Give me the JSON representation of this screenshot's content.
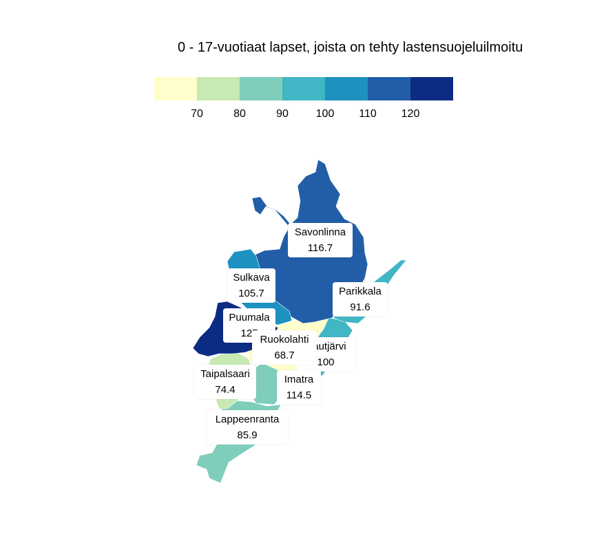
{
  "title": "0 - 17-vuotiaat lapset, joista on tehty lastensuojeluilmoitu",
  "legend": {
    "colors": [
      "#ffffcc",
      "#c7e9b4",
      "#7fcdbb",
      "#41b6c4",
      "#1d91c0",
      "#225ea8",
      "#0c2c84"
    ],
    "ticks": [
      "70",
      "80",
      "90",
      "100",
      "110",
      "120"
    ]
  },
  "regions": [
    {
      "name": "Savonlinna",
      "value": "116.7",
      "color": "#225ea8"
    },
    {
      "name": "Sulkava",
      "value": "105.7",
      "color": "#1d91c0"
    },
    {
      "name": "Parikkala",
      "value": "91.6",
      "color": "#41b6c4"
    },
    {
      "name": "Puumala",
      "value": "127",
      "color": "#0c2c84"
    },
    {
      "name": "Ruokolahti",
      "value": "68.7",
      "color": "#ffffcc"
    },
    {
      "name": "Rautjärvi",
      "value": "100",
      "color": "#41b6c4"
    },
    {
      "name": "Taipalsaari",
      "value": "74.4",
      "color": "#c7e9b4"
    },
    {
      "name": "Imatra",
      "value": "114.5",
      "color": "#225ea8"
    },
    {
      "name": "Lappeenranta",
      "value": "85.9",
      "color": "#7fcdbb"
    }
  ]
}
